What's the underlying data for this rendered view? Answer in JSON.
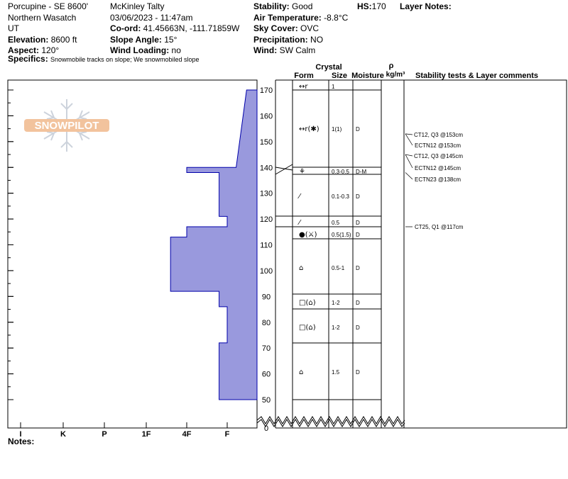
{
  "header": {
    "location": "Porcupine - SE 8600'",
    "range": "Northern Wasatch",
    "state": "UT",
    "elevation_label": "Elevation:",
    "elevation": "8600 ft",
    "aspect_label": "Aspect:",
    "aspect": "120°",
    "observer": "McKinley Talty",
    "datetime": "03/06/2023 - 11:47am",
    "coord_label": "Co-ord:",
    "coord": "41.45663N, -111.71859W",
    "slope_label": "Slope Angle:",
    "slope": "15°",
    "wind_loading_label": "Wind Loading:",
    "wind_loading": "no",
    "stability_label": "Stability:",
    "stability": "Good",
    "air_temp_label": "Air Temperature:",
    "air_temp": "-8.8°C",
    "sky_label": "Sky Cover:",
    "sky": "OVC",
    "precip_label": "Precipitation:",
    "precip": "NO",
    "wind_label": "Wind:",
    "wind": "SW Calm",
    "hs_label": "HS:",
    "hs": "170",
    "layer_notes_label": "Layer Notes:",
    "specifics_label": "Specifics:",
    "specifics": "Snowmobile tracks on slope; We snowmobiled slope"
  },
  "logo_text": "SNOWPILOT",
  "notes_label": "Notes:",
  "colors": {
    "profile_fill": "#9999dd",
    "profile_stroke": "#0000aa",
    "logo": "#f0b98d"
  },
  "columns": {
    "crystal": "Crystal",
    "form": "Form",
    "size": "Size",
    "moisture": "Moisture",
    "rho": "ρ",
    "density_unit": "kg/m³",
    "comments": "Stability tests & Layer comments"
  },
  "chart_data": {
    "type": "hardness-profile",
    "y_unit": "cm",
    "y_ticks": [
      "170",
      "160",
      "150",
      "140",
      "130",
      "120",
      "110",
      "100",
      "90",
      "80",
      "70",
      "60",
      "50",
      "0"
    ],
    "hardness_ticks": [
      "I",
      "K",
      "P",
      "1F",
      "4F",
      "F"
    ],
    "hardness_scale_note": "hardness index: F=0, 4F=1, 1F=2, P=3, K=4, I=5",
    "layers": [
      {
        "top": 170,
        "bottom": 140,
        "hardness_top": 0.35,
        "hardness_bottom": 0.7,
        "form": "↔r",
        "size": "1",
        "moisture": ""
      },
      {
        "top": 140,
        "bottom": 138,
        "hardness": 2.0,
        "form": "↔r(✱)",
        "size": "1(1)",
        "moisture": "D"
      },
      {
        "top": 138,
        "bottom": 121,
        "hardness": 1.2,
        "form": "⚘",
        "size": "0.3-0.5",
        "moisture": "D-M"
      },
      {
        "top": 121,
        "bottom": 117,
        "hardness": 1.0,
        "form": "⁄",
        "size": "0.1-0.3",
        "moisture": "D"
      },
      {
        "top": 117,
        "bottom": 113,
        "hardness": 2.0,
        "form": "⁄",
        "size": "0.5",
        "moisture": "D"
      },
      {
        "top": 113,
        "bottom": 92,
        "hardness": 2.4,
        "form": "●(⚔)",
        "size": "0.5(1.5)",
        "moisture": "D"
      },
      {
        "top": 92,
        "bottom": 86,
        "hardness": 1.2,
        "form": "⌂",
        "size": "0.5-1",
        "moisture": "D"
      },
      {
        "top": 86,
        "bottom": 72,
        "hardness": 1.0,
        "form": "□(⌂)",
        "size": "1-2",
        "moisture": "D"
      },
      {
        "top": 72,
        "bottom": 50,
        "hardness": 1.2,
        "form": "□(⌂)",
        "size": "1-2",
        "moisture": "D"
      }
    ],
    "form_rows": [
      {
        "form": "↔r",
        "size": "1",
        "moisture": ""
      },
      {
        "form": "↔r(✱)",
        "size": "1(1)",
        "moisture": "D"
      },
      {
        "form": "⚘",
        "size": "0.3-0.5",
        "moisture": "D-M"
      },
      {
        "form": "⁄",
        "size": "0.1-0.3",
        "moisture": "D"
      },
      {
        "form": "⁄",
        "size": "0.5",
        "moisture": "D"
      },
      {
        "form": "●(⚔)",
        "size": "0.5(1.5)",
        "moisture": "D"
      },
      {
        "form": "⌂",
        "size": "0.5-1",
        "moisture": "D"
      },
      {
        "form": "□(⌂)",
        "size": "1-2",
        "moisture": "D"
      },
      {
        "form": "□(⌂)",
        "size": "1-2",
        "moisture": "D"
      },
      {
        "form": "⌂",
        "size": "1.5",
        "moisture": "D"
      }
    ],
    "tests": [
      {
        "label": "CT12, Q3 @153cm",
        "height": 153
      },
      {
        "label": "ECTN12 @153cm",
        "height": 153
      },
      {
        "label": "CT12, Q3 @145cm",
        "height": 145
      },
      {
        "label": "ECTN12 @145cm",
        "height": 145
      },
      {
        "label": "ECTN23 @138cm",
        "height": 138
      },
      {
        "label": "CT25, Q1 @117cm",
        "height": 117
      }
    ]
  }
}
